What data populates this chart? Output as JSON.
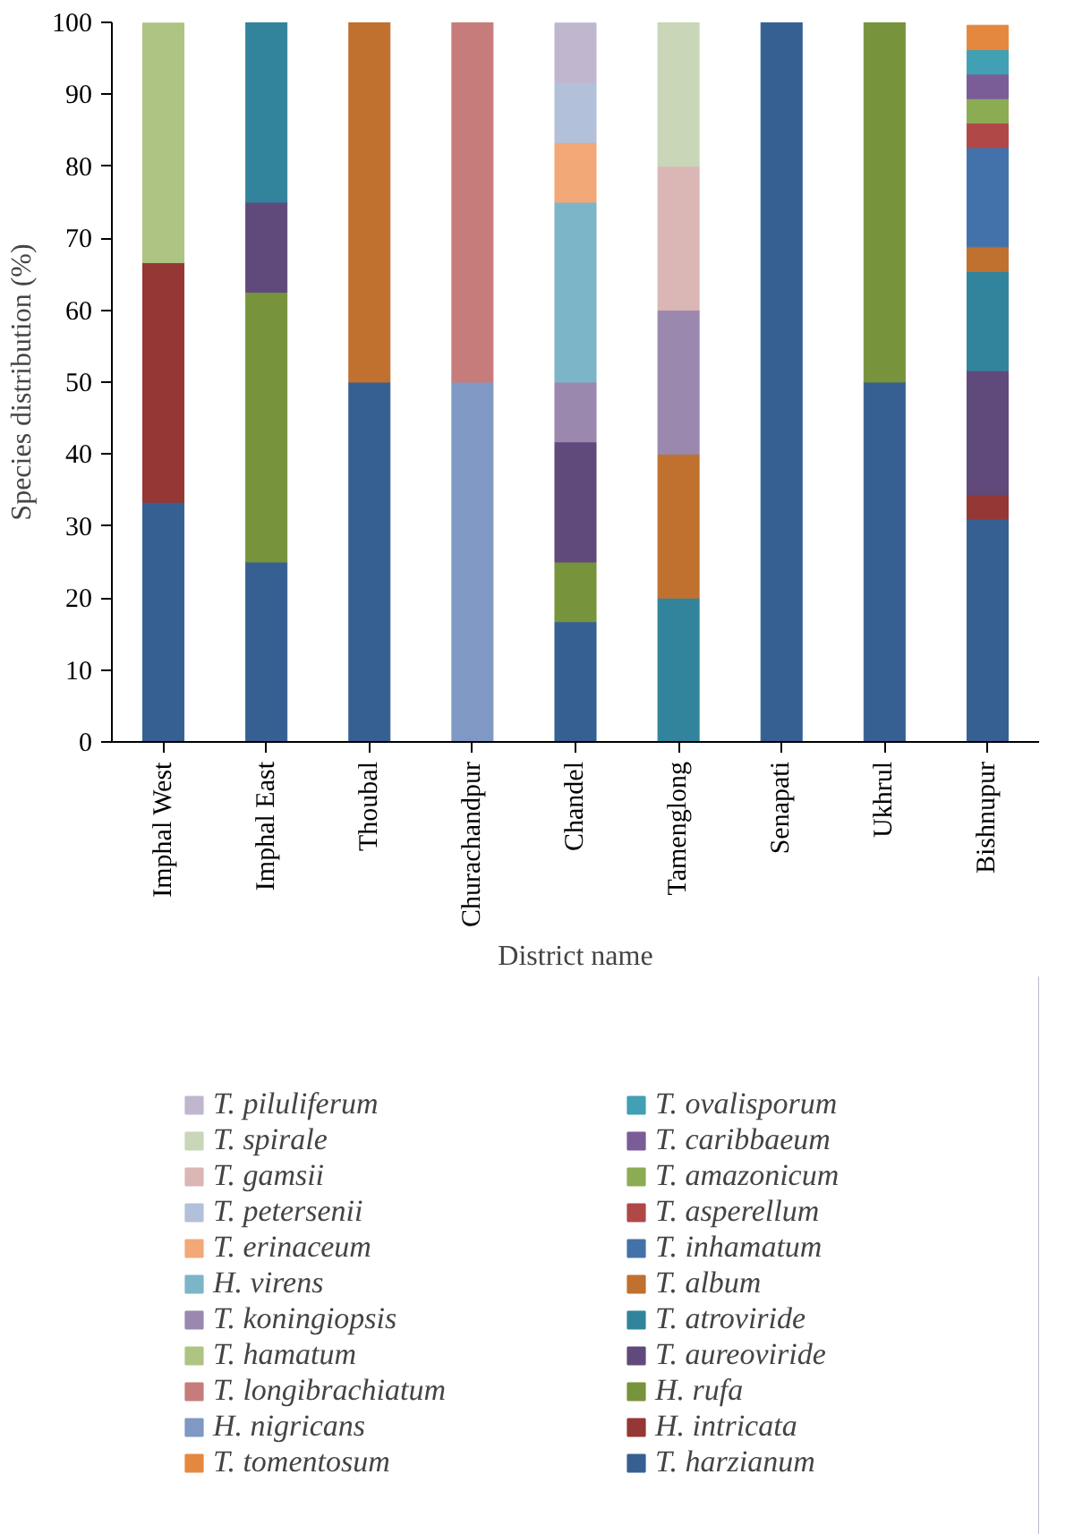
{
  "chart_data": {
    "type": "bar",
    "stacked": true,
    "xlabel": "District name",
    "ylabel": "Species distribution (%)",
    "categories": [
      "Imphal West",
      "Imphal East",
      "Thoubal",
      "Churachandpur",
      "Chandel",
      "Tamenglong",
      "Senapati",
      "Ukhrul",
      "Bishnupur"
    ],
    "ylim": [
      0,
      100
    ],
    "yticks": [
      0,
      10,
      20,
      30,
      40,
      50,
      60,
      70,
      80,
      90,
      100
    ],
    "grid": false,
    "legend": "bottom",
    "series": [
      {
        "name": "T. harzianum",
        "color": "#376092",
        "values": [
          33.3,
          25,
          50,
          null,
          16.7,
          null,
          100,
          50,
          31.0
        ]
      },
      {
        "name": "H. intricata",
        "color": "#953735",
        "values": [
          33.3,
          null,
          null,
          null,
          null,
          null,
          null,
          null,
          3.4
        ]
      },
      {
        "name": "H. rufa",
        "color": "#77933c",
        "values": [
          null,
          37.5,
          null,
          null,
          8.3,
          null,
          null,
          50,
          null
        ]
      },
      {
        "name": "T. aureoviride",
        "color": "#604a7b",
        "values": [
          null,
          12.5,
          null,
          null,
          16.7,
          null,
          null,
          null,
          17.2
        ]
      },
      {
        "name": "T. atroviride",
        "color": "#31849b",
        "values": [
          null,
          25,
          null,
          null,
          null,
          20,
          null,
          null,
          13.8
        ]
      },
      {
        "name": "T. album",
        "color": "#c0712f",
        "values": [
          null,
          null,
          50,
          null,
          null,
          20,
          null,
          null,
          3.4
        ]
      },
      {
        "name": "T. inhamatum",
        "color": "#4372aa",
        "values": [
          null,
          null,
          null,
          null,
          null,
          null,
          null,
          null,
          13.8
        ]
      },
      {
        "name": "T. asperellum",
        "color": "#b04848",
        "values": [
          null,
          null,
          null,
          null,
          null,
          null,
          null,
          null,
          3.4
        ]
      },
      {
        "name": "T. amazonicum",
        "color": "#8cac54",
        "values": [
          null,
          null,
          null,
          null,
          null,
          null,
          null,
          null,
          3.4
        ]
      },
      {
        "name": "T. caribbaeum",
        "color": "#7a5c96",
        "values": [
          null,
          null,
          null,
          null,
          null,
          null,
          null,
          null,
          3.4
        ]
      },
      {
        "name": "T. ovalisporum",
        "color": "#41a0b4",
        "values": [
          null,
          null,
          null,
          null,
          null,
          null,
          null,
          null,
          3.4
        ]
      },
      {
        "name": "T. tomentosum",
        "color": "#e5883f",
        "values": [
          null,
          null,
          null,
          null,
          null,
          null,
          null,
          null,
          3.4
        ]
      },
      {
        "name": "H. nigricans",
        "color": "#7f98c4",
        "values": [
          null,
          null,
          null,
          50,
          null,
          null,
          null,
          null,
          null
        ]
      },
      {
        "name": "T. longibrachiatum",
        "color": "#c77c7c",
        "values": [
          null,
          null,
          null,
          50,
          null,
          null,
          null,
          null,
          null
        ]
      },
      {
        "name": "T. hamatum",
        "color": "#aec482",
        "values": [
          33.3,
          null,
          null,
          null,
          null,
          null,
          null,
          null,
          null
        ]
      },
      {
        "name": "T. koningiopsis",
        "color": "#9b88ae",
        "values": [
          null,
          null,
          null,
          null,
          8.3,
          20,
          null,
          null,
          null
        ]
      },
      {
        "name": "H. virens",
        "color": "#7db5c8",
        "values": [
          null,
          null,
          null,
          null,
          25,
          null,
          null,
          null,
          null
        ]
      },
      {
        "name": "T. erinaceum",
        "color": "#f2a877",
        "values": [
          null,
          null,
          null,
          null,
          8.3,
          null,
          null,
          null,
          null
        ]
      },
      {
        "name": "T. petersenii",
        "color": "#b3c0da",
        "values": [
          null,
          null,
          null,
          null,
          8.3,
          null,
          null,
          null,
          null
        ]
      },
      {
        "name": "T. gamsii",
        "color": "#dab6b5",
        "values": [
          null,
          null,
          null,
          null,
          null,
          20,
          null,
          null,
          null
        ]
      },
      {
        "name": "T. spirale",
        "color": "#c9d6b8",
        "values": [
          null,
          null,
          null,
          null,
          null,
          20,
          null,
          null,
          null
        ]
      },
      {
        "name": "T. piluliferum",
        "color": "#c0b7cf",
        "values": [
          null,
          null,
          null,
          null,
          8.3,
          null,
          null,
          null,
          null
        ]
      }
    ]
  }
}
